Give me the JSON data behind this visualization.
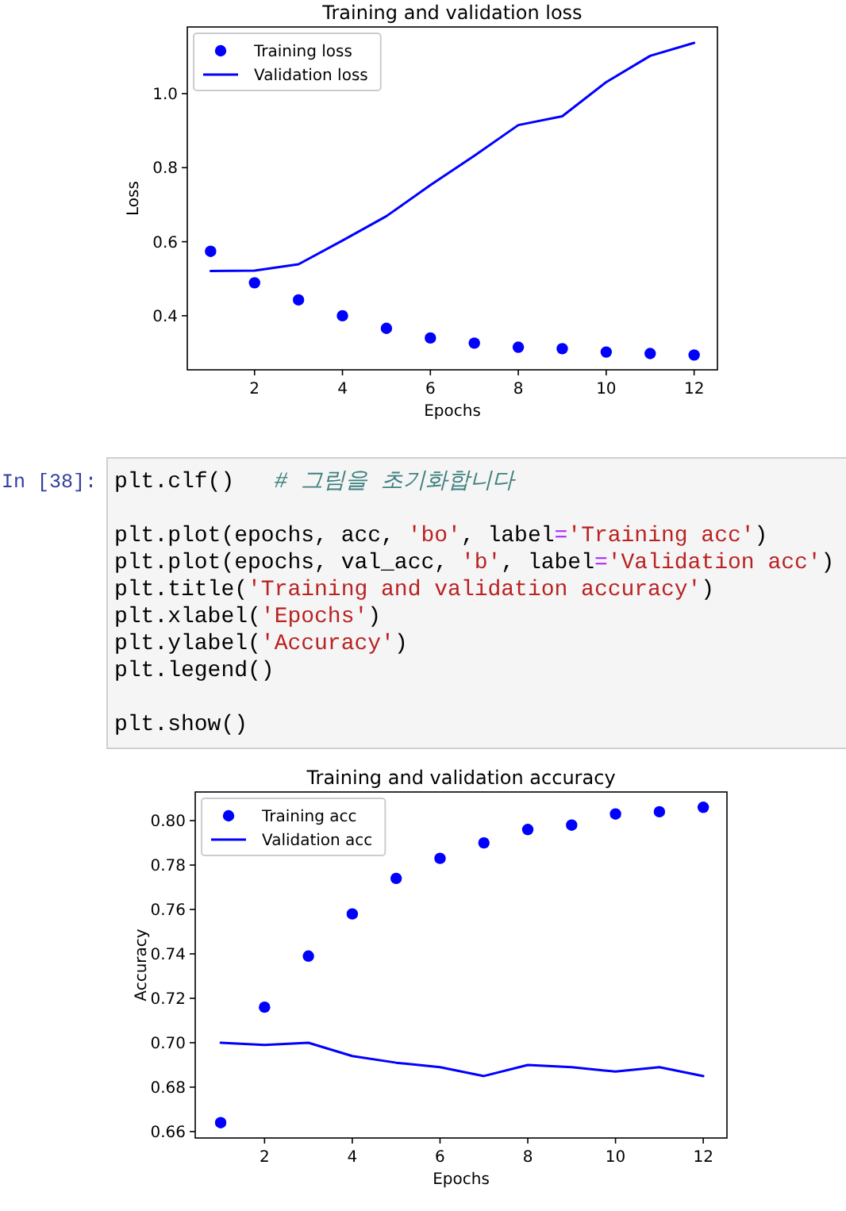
{
  "chart_data": [
    {
      "type": "line",
      "title": "Training and validation loss",
      "xlabel": "Epochs",
      "ylabel": "Loss",
      "x": [
        1,
        2,
        3,
        4,
        5,
        6,
        7,
        8,
        9,
        10,
        11,
        12
      ],
      "xlim": [
        0.47,
        12.53
      ],
      "ylim": [
        0.254,
        1.18
      ],
      "xticks": [
        2,
        4,
        6,
        8,
        10,
        12
      ],
      "yticks": [
        0.4,
        0.6,
        0.8,
        {
          "value": 1.0,
          "label": "1.0"
        }
      ],
      "legend": "top left",
      "series": [
        {
          "name": "Training loss",
          "type": "scatter",
          "marker": "circle",
          "color": "#0000ff",
          "values": [
            0.574,
            0.489,
            0.443,
            0.4,
            0.366,
            0.34,
            0.326,
            0.315,
            0.311,
            0.302,
            0.298,
            0.294
          ]
        },
        {
          "name": "Validation loss",
          "line_style": "solid",
          "color": "#0000ff",
          "values": [
            0.521,
            0.522,
            0.539,
            0.603,
            0.669,
            0.753,
            0.832,
            0.915,
            0.939,
            1.031,
            1.102,
            1.137
          ]
        }
      ]
    },
    {
      "type": "line",
      "title": "Training and validation accuracy",
      "xlabel": "Epochs",
      "ylabel": "Accuracy",
      "x": [
        1,
        2,
        3,
        4,
        5,
        6,
        7,
        8,
        9,
        10,
        11,
        12
      ],
      "xlim": [
        0.42,
        12.54
      ],
      "ylim": [
        0.6571,
        0.8129
      ],
      "xticks": [
        2,
        4,
        6,
        8,
        10,
        12
      ],
      "yticks": [
        0.66,
        0.68,
        {
          "value": 0.7,
          "label": "0.70"
        },
        0.72,
        0.74,
        0.76,
        0.78,
        {
          "value": 0.8,
          "label": "0.80"
        }
      ],
      "legend": "top left",
      "annotations": [
        "In [38]:",
        "plt.clf()   # 그림을 초기화합니다\n\nplt.plot(epochs, acc, 'bo', label='Training acc')\nplt.plot(epochs, val_acc, 'b', label='Validation acc')\nplt.title('Training and validation accuracy')\nplt.xlabel('Epochs')\nplt.ylabel('Accuracy')\nplt.legend()\n\nplt.show()"
      ],
      "series": [
        {
          "name": "Training acc",
          "type": "scatter",
          "marker": "circle",
          "color": "#0000ff",
          "values": [
            0.664,
            0.716,
            0.739,
            0.758,
            0.774,
            0.783,
            0.79,
            0.796,
            0.798,
            0.803,
            0.804,
            0.806
          ]
        },
        {
          "name": "Validation acc",
          "line_style": "solid",
          "color": "#0000ff",
          "values": [
            0.7,
            0.699,
            0.7,
            0.694,
            0.691,
            0.689,
            0.685,
            0.69,
            0.689,
            0.687,
            0.689,
            0.685
          ]
        }
      ]
    }
  ]
}
